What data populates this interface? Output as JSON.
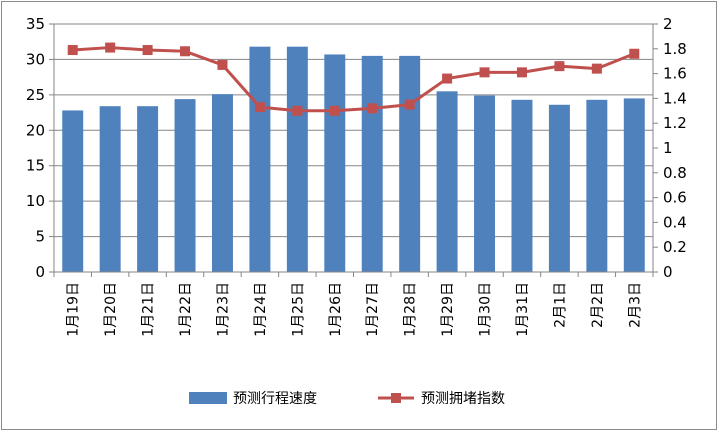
{
  "chart_data": {
    "type": "bar",
    "title": "",
    "xlabel": "",
    "ylabel": "",
    "categories": [
      "1月19日",
      "1月20日",
      "1月21日",
      "1月22日",
      "1月23日",
      "1月24日",
      "1月25日",
      "1月26日",
      "1月27日",
      "1月28日",
      "1月29日",
      "1月30日",
      "1月31日",
      "2月1日",
      "2月2日",
      "2月3日"
    ],
    "series": [
      {
        "name": "预测行程速度",
        "type": "bar",
        "axis": "left",
        "color": "#4f81bd",
        "values": [
          22.8,
          23.4,
          23.4,
          24.4,
          25.1,
          31.8,
          31.8,
          30.7,
          30.5,
          30.5,
          25.5,
          24.9,
          24.3,
          23.6,
          24.3,
          24.5
        ]
      },
      {
        "name": "预测拥堵指数",
        "type": "line",
        "axis": "right",
        "color": "#c0504d",
        "values": [
          1.79,
          1.81,
          1.79,
          1.78,
          1.67,
          1.33,
          1.3,
          1.3,
          1.32,
          1.35,
          1.56,
          1.61,
          1.61,
          1.66,
          1.64,
          1.76
        ]
      }
    ],
    "y_left": {
      "min": 0,
      "max": 35,
      "step": 5,
      "ticks": [
        "0",
        "5",
        "10",
        "15",
        "20",
        "25",
        "30",
        "35"
      ]
    },
    "y_right": {
      "min": 0,
      "max": 2,
      "step": 0.2,
      "ticks": [
        "0",
        "0.2",
        "0.4",
        "0.6",
        "0.8",
        "1",
        "1.2",
        "1.4",
        "1.6",
        "1.8",
        "2"
      ]
    },
    "grid": true,
    "legend_position": "bottom"
  }
}
